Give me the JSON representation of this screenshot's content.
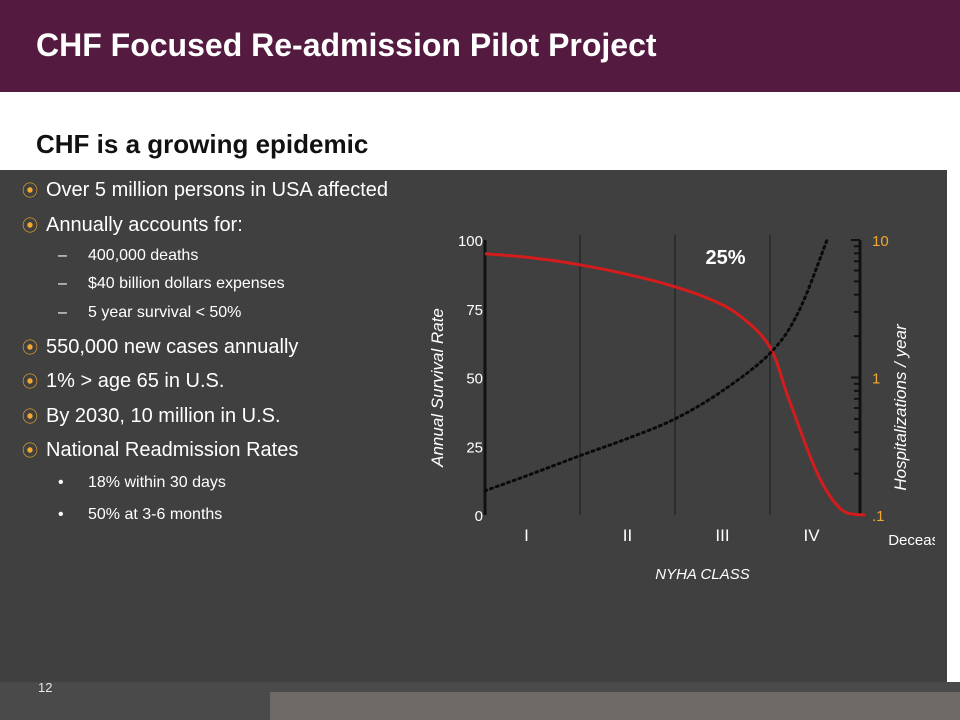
{
  "header": {
    "title": "CHF Focused Re-admission Pilot  Project"
  },
  "subtitle": "CHF is a growing epidemic",
  "bullets": [
    {
      "text": "Over 5 million persons in USA affected"
    },
    {
      "text": "Annually accounts for:"
    },
    {
      "text": "400,000 deaths"
    },
    {
      "text": "$40 billion dollars expenses"
    },
    {
      "text": "5 year survival < 50%"
    },
    {
      "text": "550,000 new cases annually"
    },
    {
      "text": "1% > age 65 in U.S."
    },
    {
      "text": "By 2030, 10 million in U.S."
    },
    {
      "text": "National Readmission Rates"
    },
    {
      "text": "18% within 30 days"
    },
    {
      "text": "50% at 3-6 months"
    }
  ],
  "markers": {
    "main": "⦿",
    "dash": "–",
    "dot": "•"
  },
  "page_number": "12",
  "colors": {
    "header_bg": "#541a40",
    "panel_bg": "#404040",
    "accent": "#f0a830",
    "survival_line": "#d41c1c"
  },
  "chart_data": {
    "type": "line",
    "annotation": "25%",
    "xlabel": "NYHA CLASS",
    "x_categories": [
      "I",
      "II",
      "III",
      "IV",
      "Deceased"
    ],
    "y_left": {
      "label": "Annual Survival Rate",
      "ticks": [
        "0",
        "25",
        "50",
        "75",
        "100"
      ],
      "range": [
        0,
        100
      ]
    },
    "y_right": {
      "label": "Hospitalizations  / year",
      "ticks": [
        ".1",
        "1",
        "10"
      ],
      "scale": "log",
      "range": [
        0.1,
        10
      ]
    },
    "series": [
      {
        "axis": "left",
        "style": "solid",
        "x": [
          0,
          0.5,
          1,
          1.5,
          2,
          2.4,
          2.7,
          3,
          3.2,
          3.5,
          3.75,
          4
        ],
        "y": [
          95,
          93.5,
          91,
          87.5,
          83,
          78,
          72,
          61,
          42,
          15,
          2,
          0
        ]
      },
      {
        "axis": "right",
        "style": "dotted",
        "x": [
          0,
          0.5,
          1,
          1.5,
          2,
          2.5,
          3,
          3.3,
          3.6
        ],
        "y": [
          0.15,
          0.2,
          0.27,
          0.36,
          0.5,
          0.8,
          1.5,
          3,
          10
        ]
      }
    ]
  }
}
